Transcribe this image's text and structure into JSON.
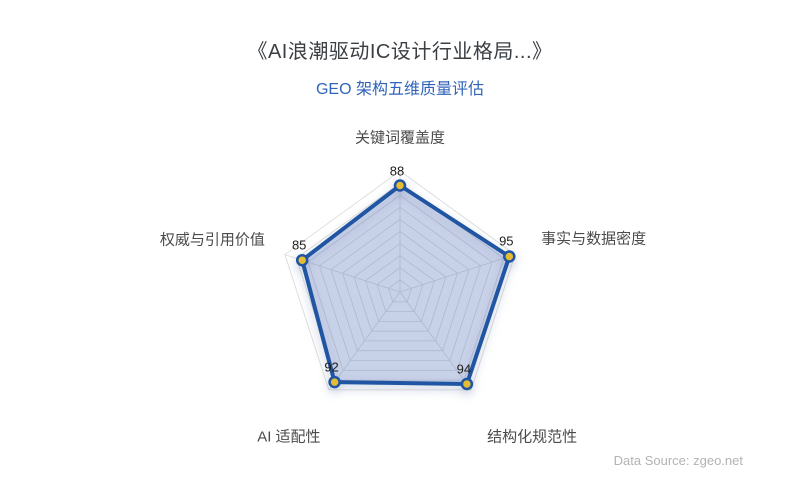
{
  "header": {
    "title": "《AI浪潮驱动IC设计行业格局...》",
    "subtitle": "GEO 架构五维质量评估",
    "subtitle_color": "#3064ba"
  },
  "footer": {
    "data_source": "Data Source: zgeo.net"
  },
  "chart_data": {
    "type": "radar",
    "title": "《AI浪潮驱动IC设计行业格局...》",
    "subtitle": "GEO 架构五维质量评估",
    "categories": [
      "关键词覆盖度",
      "事实与数据密度",
      "结构化规范性",
      "AI 适配性",
      "权威与引用价值"
    ],
    "series": [
      {
        "name": "GEO 架构五维质量评估",
        "values": [
          88,
          95,
          94,
          92,
          85
        ]
      }
    ],
    "max": 100,
    "rings": 10,
    "grid_on": true,
    "legend_position": "none",
    "colors": {
      "line": "#1f55a2",
      "fill": "rgba(100,125,195,0.28)",
      "dot_fill": "#e5bd33",
      "dot_stroke": "#1f55a2",
      "grid": "#d9d9d9",
      "axis_label": "#4b4b4b",
      "value_label": "#1c1c1c"
    }
  }
}
